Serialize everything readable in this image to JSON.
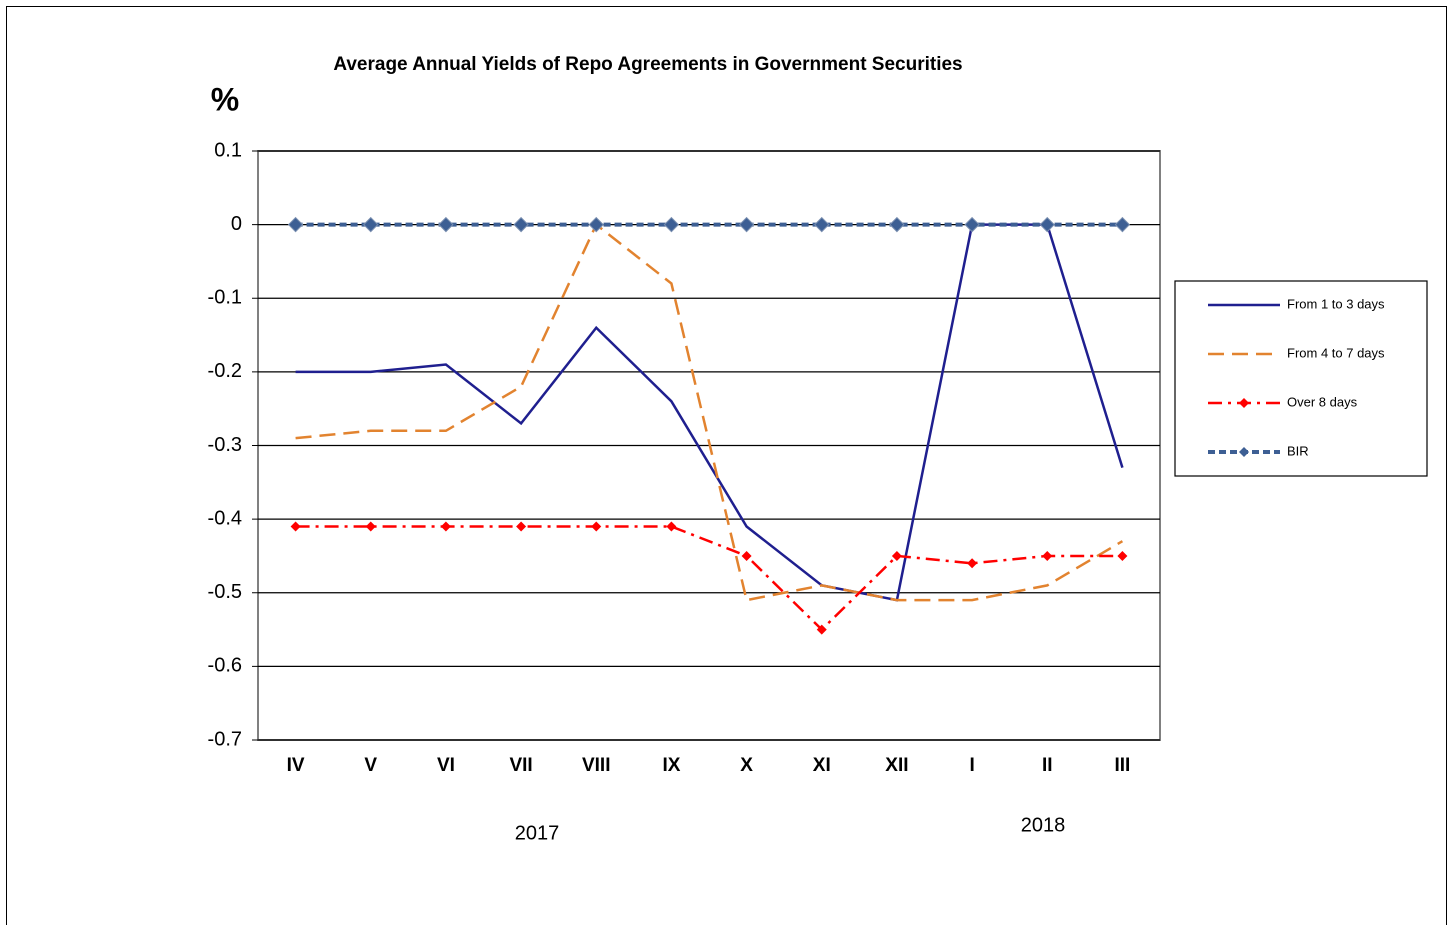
{
  "chart_data": {
    "type": "line",
    "title": "Average Annual Yields of Repo Agreements in Government Securities",
    "y_label": "%",
    "categories": [
      "IV",
      "V",
      "VI",
      "VII",
      "VIII",
      "IX",
      "X",
      "XI",
      "XII",
      "I",
      "II",
      "III"
    ],
    "x_group_labels": [
      "2017",
      "2018"
    ],
    "ylim": [
      -0.7,
      0.1
    ],
    "yticks": [
      0.1,
      0,
      -0.1,
      -0.2,
      -0.3,
      -0.4,
      -0.5,
      -0.6,
      -0.7
    ],
    "grid": true,
    "legend": "right",
    "series": [
      {
        "name": "From 1 to 3 days",
        "color": "#1f1f8f",
        "dash": "solid",
        "marker": "none",
        "values": [
          -0.2,
          -0.2,
          -0.19,
          -0.27,
          -0.14,
          -0.24,
          -0.41,
          -0.49,
          -0.51,
          0,
          0,
          -0.33
        ]
      },
      {
        "name": "From 4 to 7 days",
        "color": "#e2832f",
        "dash": "dashed",
        "marker": "none",
        "values": [
          -0.29,
          -0.28,
          -0.28,
          -0.22,
          0,
          -0.08,
          -0.51,
          -0.49,
          -0.51,
          -0.51,
          -0.49,
          -0.43
        ]
      },
      {
        "name": "Over 8 days",
        "color": "#ff0000",
        "dash": "dashdot",
        "marker": "diamond",
        "values": [
          -0.41,
          -0.41,
          -0.41,
          -0.41,
          -0.41,
          -0.41,
          -0.45,
          -0.55,
          -0.45,
          -0.46,
          -0.45,
          -0.45
        ]
      },
      {
        "name": "BIR",
        "color": "#3d5f94",
        "dash": "dotted",
        "marker": "diamond",
        "values": [
          0,
          0,
          0,
          0,
          0,
          0,
          0,
          0,
          0,
          0,
          0,
          0
        ]
      }
    ]
  }
}
